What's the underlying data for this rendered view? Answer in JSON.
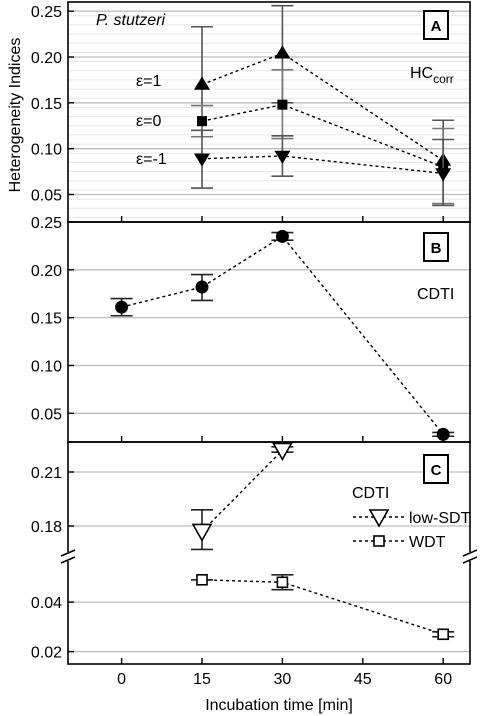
{
  "figure": {
    "ylabel": "Heterogeneity Indices",
    "xlabel": "Incubation time [min]",
    "x_ticks": [
      "0",
      "15",
      "30",
      "45",
      "60"
    ]
  },
  "chart_data": [
    {
      "panel": "A",
      "type": "line",
      "organism": "P. stutzeri",
      "metric_label": "HC",
      "metric_sub": "corr",
      "xlim": [
        -10,
        65
      ],
      "ylim": [
        0.02,
        0.26
      ],
      "y_ticks": [
        "0.05",
        "0.10",
        "0.15",
        "0.20",
        "0.25"
      ],
      "y_tick_values": [
        0.05,
        0.1,
        0.15,
        0.2,
        0.25
      ],
      "series": [
        {
          "name": "ε=1",
          "marker": "triangle-up",
          "x": [
            15,
            30,
            60
          ],
          "y": [
            0.17,
            0.204,
            0.087
          ],
          "err_low": [
            0.113,
            0.15,
            0.04
          ],
          "err_high": [
            0.233,
            0.256,
            0.131
          ]
        },
        {
          "name": "ε=0",
          "marker": "square",
          "x": [
            15,
            30,
            60
          ],
          "y": [
            0.13,
            0.148,
            0.08
          ],
          "err_low": [
            0.113,
            0.111,
            0.04
          ],
          "err_high": [
            0.147,
            0.186,
            0.122
          ]
        },
        {
          "name": "ε=-1",
          "marker": "triangle-down",
          "x": [
            15,
            30,
            60
          ],
          "y": [
            0.089,
            0.092,
            0.073
          ],
          "err_low": [
            0.057,
            0.07,
            0.038
          ],
          "err_high": [
            0.12,
            0.114,
            0.11
          ]
        }
      ]
    },
    {
      "panel": "B",
      "type": "line",
      "metric_label": "CDTI",
      "xlim": [
        -10,
        65
      ],
      "ylim": [
        0.02,
        0.25
      ],
      "y_ticks": [
        "0.05",
        "0.10",
        "0.15",
        "0.20",
        "0.25"
      ],
      "y_tick_values": [
        0.05,
        0.1,
        0.15,
        0.2,
        0.25
      ],
      "series": [
        {
          "name": "",
          "marker": "circle",
          "x": [
            0,
            15,
            30,
            60
          ],
          "y": [
            0.161,
            0.182,
            0.235,
            0.028
          ],
          "err_low": [
            0.152,
            0.168,
            0.231,
            0.026
          ],
          "err_high": [
            0.17,
            0.195,
            0.239,
            0.03
          ]
        }
      ]
    },
    {
      "panel": "C",
      "type": "line",
      "metric_label": "CDTI",
      "xlim": [
        -10,
        65
      ],
      "axis_break": true,
      "upper_ylim": [
        0.165,
        0.225
      ],
      "lower_ylim": [
        0.015,
        0.057
      ],
      "y_ticks_upper": [
        "0.18",
        "0.21"
      ],
      "y_tick_values_upper": [
        0.18,
        0.21
      ],
      "y_ticks_lower": [
        "0.02",
        "0.04"
      ],
      "y_tick_values_lower": [
        0.02,
        0.04
      ],
      "series": [
        {
          "name": "low-SDT",
          "marker": "triangle-down-open",
          "x": [
            15,
            30
          ],
          "y": [
            0.177,
            0.222
          ],
          "err_low": [
            0.167,
            0.221
          ],
          "err_high": [
            0.189,
            0.224
          ]
        },
        {
          "name": "WDT",
          "marker": "square-open",
          "x": [
            15,
            30,
            60
          ],
          "y": [
            0.049,
            0.048,
            0.027
          ],
          "err_low": [
            0.049,
            0.045,
            0.026
          ],
          "err_high": [
            0.049,
            0.051,
            0.028
          ]
        }
      ]
    }
  ]
}
